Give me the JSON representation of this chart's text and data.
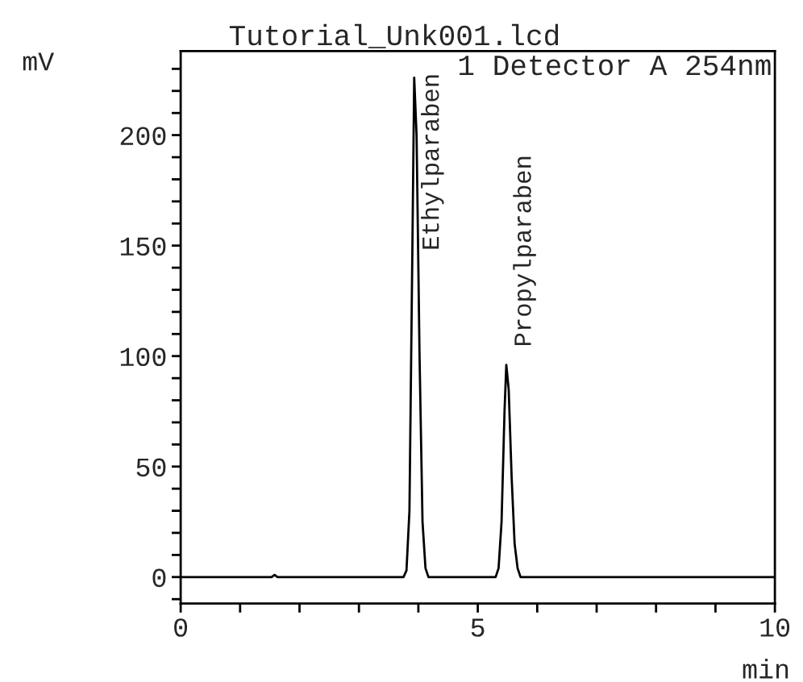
{
  "chart_data": {
    "type": "line",
    "title": "Tutorial_Unk001.lcd",
    "xlabel": "min",
    "ylabel": "mV",
    "annotations": [
      "1 Detector A 254nm",
      {
        "text": "Ethylparaben",
        "x": 3.93,
        "y": 226
      },
      {
        "text": "Propylparaben",
        "x": 5.48,
        "y": 96
      }
    ],
    "series": [
      {
        "color": "#000000",
        "x": [
          0,
          1.53,
          1.58,
          1.63,
          3.75,
          3.8,
          3.85,
          3.9,
          3.93,
          3.97,
          4.02,
          4.07,
          4.12,
          4.17,
          5.3,
          5.35,
          5.4,
          5.45,
          5.48,
          5.52,
          5.57,
          5.62,
          5.67,
          5.72,
          10
        ],
        "values": [
          0,
          0,
          1,
          0,
          0,
          3,
          30,
          150,
          226,
          200,
          100,
          25,
          4,
          0,
          0,
          4,
          25,
          75,
          96,
          85,
          45,
          15,
          4,
          0,
          0
        ]
      }
    ],
    "xlim": [
      0,
      10
    ],
    "ylim": [
      -12,
      238
    ],
    "xticks": [
      0,
      {
        "value": 1,
        "label": null
      },
      {
        "value": 2,
        "label": null
      },
      {
        "value": 3,
        "label": null
      },
      {
        "value": 4,
        "label": null
      },
      5,
      {
        "value": 6,
        "label": null
      },
      {
        "value": 7,
        "label": null
      },
      {
        "value": 8,
        "label": null
      },
      {
        "value": 9,
        "label": null
      },
      10
    ],
    "yticks": [
      {
        "value": -10,
        "label": null
      },
      0,
      {
        "value": 10,
        "label": null
      },
      {
        "value": 20,
        "label": null
      },
      {
        "value": 30,
        "label": null
      },
      {
        "value": 40,
        "label": null
      },
      50,
      {
        "value": 60,
        "label": null
      },
      {
        "value": 70,
        "label": null
      },
      {
        "value": 80,
        "label": null
      },
      {
        "value": 90,
        "label": null
      },
      100,
      {
        "value": 110,
        "label": null
      },
      {
        "value": 120,
        "label": null
      },
      {
        "value": 130,
        "label": null
      },
      {
        "value": 140,
        "label": null
      },
      150,
      {
        "value": 160,
        "label": null
      },
      {
        "value": 170,
        "label": null
      },
      {
        "value": 180,
        "label": null
      },
      {
        "value": 190,
        "label": null
      },
      200,
      {
        "value": 210,
        "label": null
      },
      {
        "value": 220,
        "label": null
      },
      {
        "value": 230,
        "label": null
      }
    ]
  }
}
